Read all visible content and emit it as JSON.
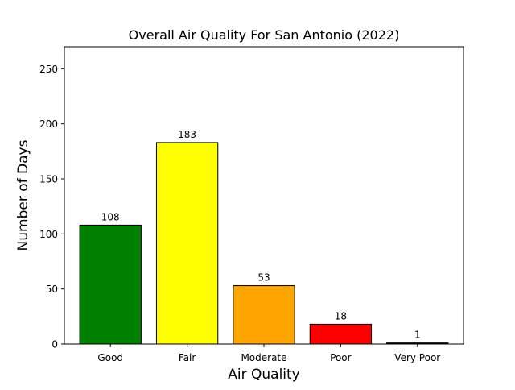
{
  "chart_data": {
    "type": "bar",
    "title": "Overall Air Quality For San Antonio (2022)",
    "xlabel": "Air Quality",
    "ylabel": "Number of Days",
    "categories": [
      "Good",
      "Fair",
      "Moderate",
      "Poor",
      "Very Poor"
    ],
    "values": [
      108,
      183,
      53,
      18,
      1
    ],
    "data_labels": [
      "108",
      "183",
      "53",
      "18",
      "1"
    ],
    "bar_colors": [
      "#008000",
      "#ffff00",
      "#ffa500",
      "#ff0000",
      "#000000"
    ],
    "bar_edge_color": "#000000",
    "ylim": [
      0,
      270
    ],
    "yticks": [
      0,
      50,
      100,
      150,
      200,
      250
    ],
    "ytick_labels": [
      "0",
      "50",
      "100",
      "150",
      "200",
      "250"
    ],
    "grid": false,
    "legend": "none"
  }
}
